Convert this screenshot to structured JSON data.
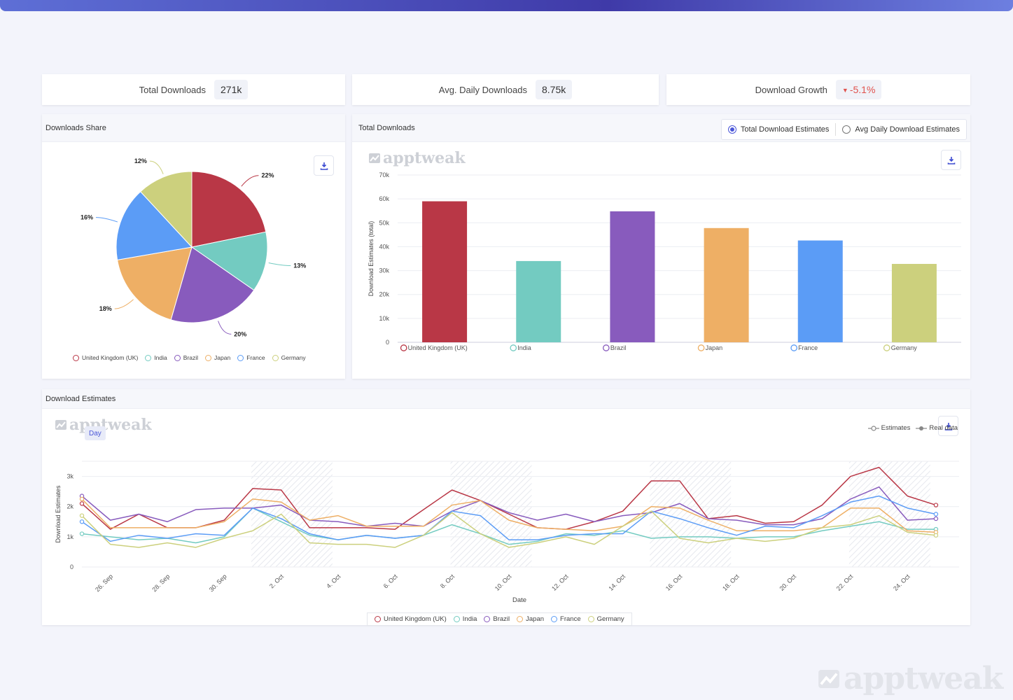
{
  "kpis": [
    {
      "label": "Total Downloads",
      "value": "271k"
    },
    {
      "label": "Avg. Daily Downloads",
      "value": "8.75k"
    },
    {
      "label": "Download Growth",
      "value": "-5.1%"
    }
  ],
  "share_panel": {
    "title": "Downloads Share"
  },
  "total_panel": {
    "title": "Total Downloads",
    "options": [
      "Total Download Estimates",
      "Avg Daily Download Estimates"
    ],
    "selected": "Total Download Estimates"
  },
  "estimates_panel": {
    "title": "Download Estimates",
    "granularity": "Day",
    "legend_estimates": "Estimates",
    "legend_real": "Real data"
  },
  "brand": "apptweak",
  "colors": {
    "United Kingdom (UK)": "#b93746",
    "India": "#73cbc1",
    "Brazil": "#885bbd",
    "Japan": "#eeaf65",
    "France": "#5b9cf6",
    "Germany": "#ccd07d"
  },
  "chart_data": [
    {
      "type": "pie",
      "labels": [
        "United Kingdom (UK)",
        "India",
        "Brazil",
        "Japan",
        "France",
        "Germany"
      ],
      "values": [
        22,
        13,
        20,
        18,
        16,
        12
      ],
      "value_labels": [
        "22%",
        "13%",
        "20%",
        "18%",
        "16%",
        "12%"
      ]
    },
    {
      "type": "bar",
      "categories": [
        "United Kingdom (UK)",
        "India",
        "Brazil",
        "Japan",
        "France",
        "Germany"
      ],
      "values": [
        59000,
        34000,
        54800,
        47800,
        42600,
        32800
      ],
      "ylabel": "Download Estimates (total)",
      "ylim": [
        0,
        70000
      ],
      "yticks": [
        "0",
        "10k",
        "20k",
        "30k",
        "40k",
        "50k",
        "60k",
        "70k"
      ]
    },
    {
      "type": "line",
      "xlabel": "Date",
      "ylabel": "Download Estimates",
      "ylim": [
        0,
        3500
      ],
      "yticks": [
        "0",
        "1k",
        "2k",
        "3k"
      ],
      "xticks": [
        "26. Sep",
        "28. Sep",
        "30. Sep",
        "2. Oct",
        "4. Oct",
        "6. Oct",
        "8. Oct",
        "10. Oct",
        "12. Oct",
        "14. Oct",
        "16. Oct",
        "18. Oct",
        "20. Oct",
        "22. Oct",
        "24. Oct"
      ],
      "series": [
        {
          "name": "United Kingdom (UK)",
          "values": [
            2100,
            1250,
            1750,
            1300,
            1300,
            1550,
            2600,
            2550,
            1300,
            1300,
            1300,
            1250,
            1900,
            2550,
            2200,
            1750,
            1300,
            1250,
            1500,
            1850,
            2850,
            2850,
            1600,
            1700,
            1450,
            1500,
            2050,
            3000,
            3300,
            2350,
            2050
          ]
        },
        {
          "name": "India",
          "values": [
            1100,
            1000,
            900,
            950,
            800,
            1000,
            1950,
            1500,
            1050,
            900,
            1050,
            950,
            1050,
            1400,
            1100,
            750,
            850,
            1100,
            1050,
            1200,
            950,
            1000,
            1000,
            950,
            1000,
            1000,
            1200,
            1350,
            1500,
            1250,
            1250
          ]
        },
        {
          "name": "Brazil",
          "values": [
            2350,
            1550,
            1750,
            1500,
            1900,
            1950,
            1950,
            2050,
            1550,
            1500,
            1350,
            1450,
            1350,
            1850,
            2200,
            1800,
            1550,
            1750,
            1500,
            1700,
            1800,
            2100,
            1600,
            1550,
            1400,
            1400,
            1600,
            2250,
            2650,
            1550,
            1600
          ]
        },
        {
          "name": "Japan",
          "values": [
            2250,
            1300,
            1300,
            1300,
            1300,
            1500,
            2250,
            2150,
            1550,
            1700,
            1350,
            1350,
            1350,
            2050,
            2200,
            1550,
            1300,
            1250,
            1200,
            1350,
            2000,
            1950,
            1550,
            1200,
            1200,
            1200,
            1300,
            1950,
            1950,
            1200,
            1150
          ]
        },
        {
          "name": "France",
          "values": [
            1500,
            850,
            1050,
            950,
            1100,
            1050,
            1950,
            1600,
            1100,
            900,
            1050,
            950,
            1050,
            1850,
            1700,
            900,
            900,
            1050,
            1100,
            1100,
            1850,
            1600,
            1300,
            1050,
            1350,
            1300,
            1700,
            2150,
            2350,
            1950,
            1750
          ]
        },
        {
          "name": "Germany",
          "values": [
            1700,
            750,
            650,
            800,
            650,
            950,
            1200,
            1750,
            800,
            750,
            750,
            650,
            1050,
            1800,
            1100,
            650,
            800,
            1000,
            750,
            1350,
            1850,
            950,
            800,
            950,
            850,
            950,
            1300,
            1400,
            1700,
            1150,
            1050
          ]
        }
      ],
      "highlight_ranges": [
        [
          6,
          8
        ],
        [
          13,
          15
        ],
        [
          20,
          22
        ],
        [
          27,
          29
        ]
      ]
    }
  ]
}
